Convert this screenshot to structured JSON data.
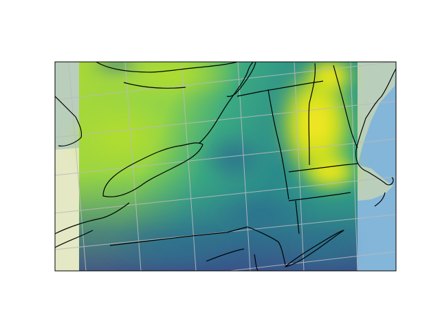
{
  "map": {
    "type": "raster-map",
    "projection": "lambert-conformal",
    "colormap": "viridis",
    "colors": {
      "ocean_base": "#c7d8dc",
      "ocean": "#84b6d9",
      "land_base": "#e4e8c4",
      "canada_land": "#b9cfbc",
      "coastline": "#000000",
      "gridline": "#bbbbbb",
      "frame": "#000000"
    },
    "gridlines": true,
    "features": [
      "coastlines",
      "lakes",
      "state-borders",
      "country-borders"
    ]
  }
}
